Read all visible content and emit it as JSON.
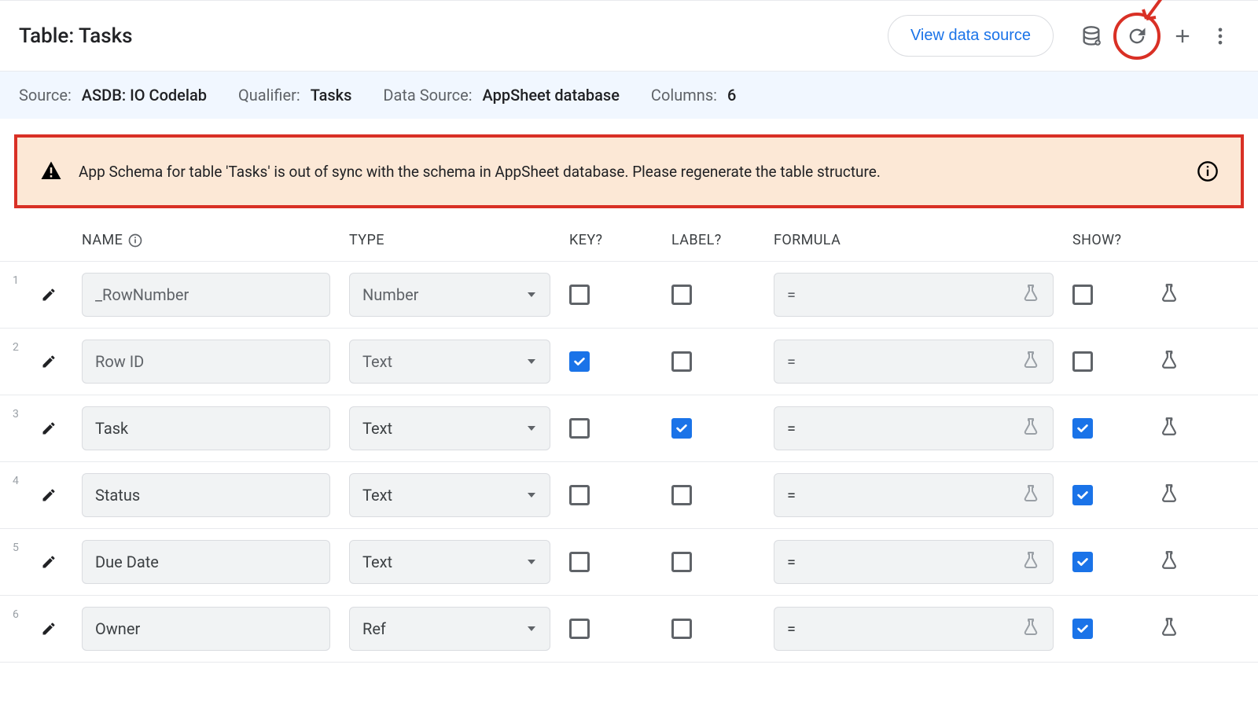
{
  "header": {
    "title": "Table: Tasks",
    "view_source_label": "View data source"
  },
  "meta": {
    "source_label": "Source:",
    "source_value": "ASDB: IO Codelab",
    "qualifier_label": "Qualifier:",
    "qualifier_value": "Tasks",
    "datasource_label": "Data Source:",
    "datasource_value": "AppSheet database",
    "columns_label": "Columns:",
    "columns_value": "6"
  },
  "warning": {
    "text": "App Schema for table 'Tasks' is out of sync with the schema in AppSheet database. Please regenerate the table structure."
  },
  "col_headers": {
    "name": "NAME",
    "type": "TYPE",
    "key": "KEY?",
    "label": "LABEL?",
    "formula": "FORMULA",
    "show": "SHOW?"
  },
  "rows": [
    {
      "num": "1",
      "name": "_RowNumber",
      "type": "Number",
      "key": false,
      "label": false,
      "formula": "=",
      "show": false,
      "dimmed": true
    },
    {
      "num": "2",
      "name": "Row ID",
      "type": "Text",
      "key": true,
      "label": false,
      "formula": "=",
      "show": false,
      "dimmed": true
    },
    {
      "num": "3",
      "name": "Task",
      "type": "Text",
      "key": false,
      "label": true,
      "formula": "=",
      "show": true,
      "dimmed": false
    },
    {
      "num": "4",
      "name": "Status",
      "type": "Text",
      "key": false,
      "label": false,
      "formula": "=",
      "show": true,
      "dimmed": false
    },
    {
      "num": "5",
      "name": "Due Date",
      "type": "Text",
      "key": false,
      "label": false,
      "formula": "=",
      "show": true,
      "dimmed": false
    },
    {
      "num": "6",
      "name": "Owner",
      "type": "Ref",
      "key": false,
      "label": false,
      "formula": "=",
      "show": true,
      "dimmed": false
    }
  ],
  "colors": {
    "accent": "#1a73e8",
    "border": "#dadce0",
    "text_muted": "#5f6368",
    "warn_bg": "#fce8d6",
    "warn_border": "#d93025"
  }
}
